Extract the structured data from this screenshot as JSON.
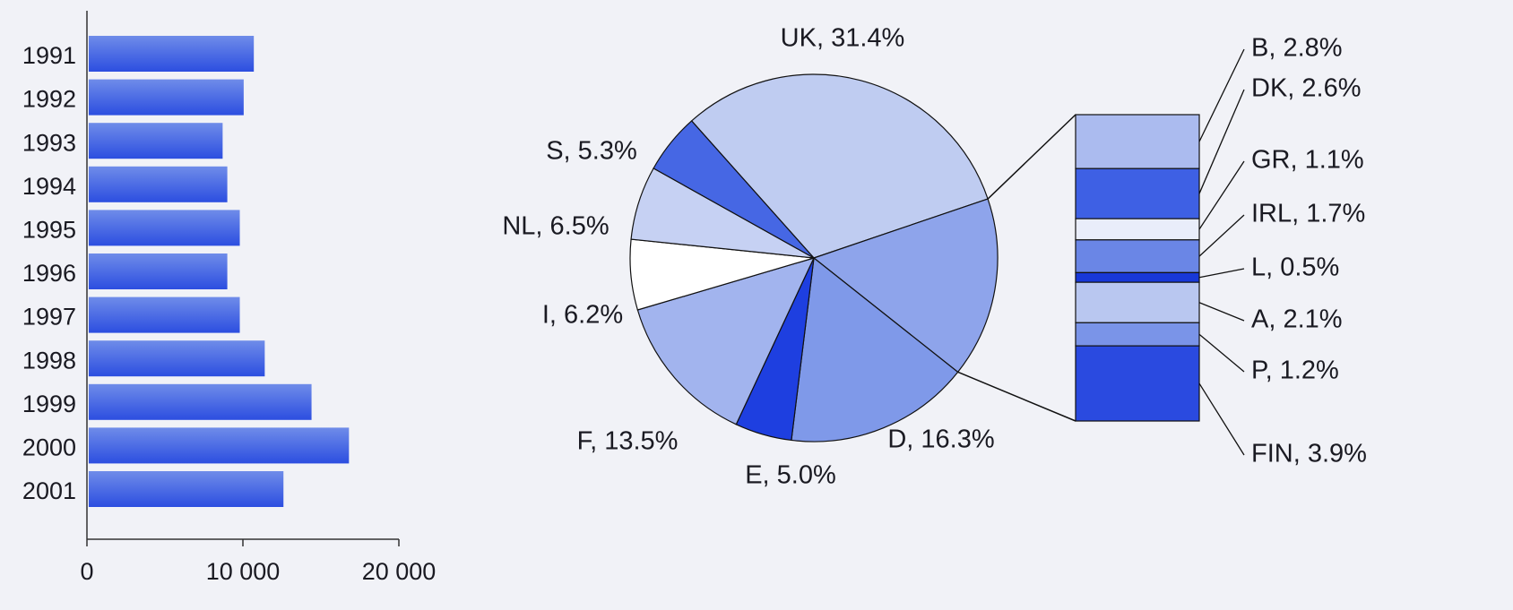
{
  "chart_data": [
    {
      "type": "bar",
      "orientation": "horizontal",
      "categories": [
        "1991",
        "1992",
        "1993",
        "1994",
        "1995",
        "1996",
        "1997",
        "1998",
        "1999",
        "2000",
        "2001"
      ],
      "values": [
        10700,
        10050,
        8700,
        9000,
        9800,
        9000,
        9800,
        11400,
        14400,
        16800,
        12600
      ],
      "color": "#3d5fe2",
      "xlim": [
        0,
        20000
      ],
      "xticks": [
        0,
        {
          "value": 10000,
          "label": "10 000"
        },
        {
          "value": 20000,
          "label": "20 000"
        }
      ]
    },
    {
      "type": "pie",
      "values": [
        31.4,
        16.3,
        5.0,
        13.5,
        6.2,
        6.5,
        5.3
      ],
      "value_labels": [
        "UK, 31.4%",
        "D, 16.3%",
        "E, 5.0%",
        "F, 13.5%",
        "I, 6.2%",
        "NL, 6.5%",
        "S, 5.3%"
      ],
      "colors": [
        "#bfccf1",
        "#7f99e9",
        "#1e3fe0",
        "#a2b4ee",
        "#ffffff",
        "#c6d1f3",
        "#4667e4"
      ],
      "breakdown": {
        "type": "bar",
        "values": [
          2.8,
          2.6,
          1.1,
          1.7,
          0.5,
          2.1,
          1.2,
          3.9
        ],
        "value_labels": [
          "B, 2.8%",
          "DK, 2.6%",
          "GR, 1.1%",
          "IRL, 1.7%",
          "L, 0.5%",
          "A, 2.1%",
          "P, 1.2%",
          "FIN, 3.9%"
        ],
        "colors": [
          "#abbbef",
          "#3e60e4",
          "#e9edfa",
          "#6a86e6",
          "#1838d8",
          "#b9c7f0",
          "#7a94e8",
          "#2a4ae0"
        ]
      }
    }
  ]
}
